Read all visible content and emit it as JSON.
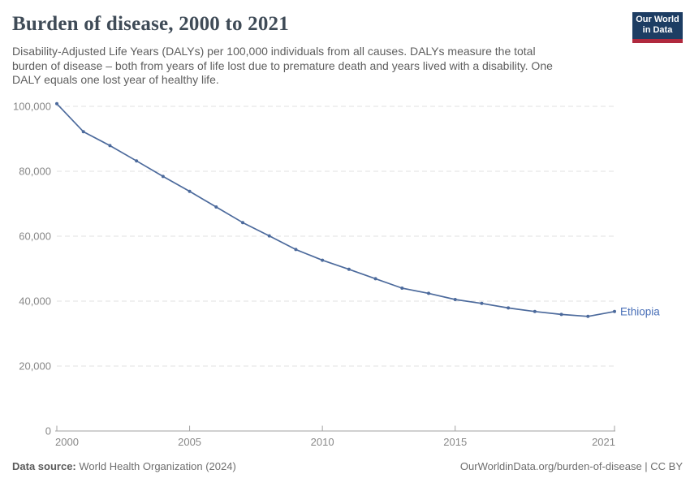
{
  "header": {
    "title": "Burden of disease, 2000 to 2021",
    "subtitle_lines": [
      "Disability-Adjusted Life Years (DALYs) per 100,000 individuals from all causes. DALYs measure the total",
      "burden of disease – both from years of life lost due to premature death and years lived with a disability. One",
      "DALY equals one lost year of healthy life."
    ],
    "logo": {
      "line1": "Our World",
      "line2": "in Data",
      "bg_color": "#1d3d63",
      "bar_color": "#b0293e"
    }
  },
  "chart_data": {
    "type": "line",
    "title": "Burden of disease, 2000 to 2021",
    "xlabel": "",
    "ylabel": "DALYs per 100,000 individuals",
    "ylim": [
      0,
      100000
    ],
    "yticks": [
      0,
      20000,
      40000,
      60000,
      80000,
      100000
    ],
    "xticks": [
      2000,
      2005,
      2010,
      2015,
      2021
    ],
    "grid": "horizontal-dashed",
    "legend_position": "end-of-line-label",
    "x": [
      2000,
      2001,
      2002,
      2003,
      2004,
      2005,
      2006,
      2007,
      2008,
      2009,
      2010,
      2011,
      2012,
      2013,
      2014,
      2015,
      2016,
      2017,
      2018,
      2019,
      2020,
      2021
    ],
    "series": [
      {
        "name": "Ethiopia",
        "color": "#4C6A9C",
        "label_color": "#4a70b8",
        "values": [
          100800,
          92200,
          87900,
          83200,
          78400,
          73800,
          69000,
          64200,
          60100,
          55900,
          52600,
          49800,
          46900,
          44000,
          42400,
          40500,
          39300,
          37900,
          36800,
          35900,
          35300,
          36800
        ]
      }
    ]
  },
  "footer": {
    "source_label": "Data source:",
    "source_value": "World Health Organization (2024)",
    "license": "OurWorldinData.org/burden-of-disease | CC BY"
  },
  "colors": {
    "title": "#3f4b57",
    "subtitle": "#5e5e5e",
    "axis": "#a1a1a1",
    "gridline": "#e0e0e0",
    "tick_label": "#888888",
    "footer_text": "#6e6e6e"
  }
}
